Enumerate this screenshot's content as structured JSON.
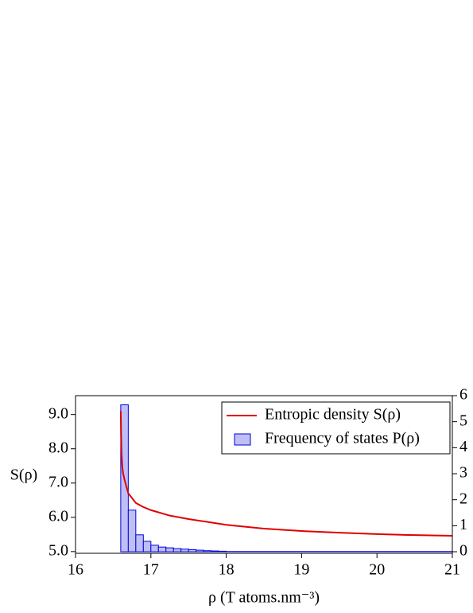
{
  "chart_data": {
    "type": "combo",
    "ylabel": "S(ρ)",
    "xlabel": "ρ  (T atoms.nm⁻³)",
    "xlim": [
      16,
      21
    ],
    "xticks": [
      16,
      17,
      18,
      19,
      20,
      21
    ],
    "ylim": [
      4.95,
      9.55
    ],
    "yticks": [
      {
        "value": 5,
        "label": "5.0"
      },
      {
        "value": 6,
        "label": "6.0"
      },
      {
        "value": 7,
        "label": "7.0"
      },
      {
        "value": 8,
        "label": "8.0"
      },
      {
        "value": 9,
        "label": "9.0"
      }
    ],
    "y2lim": [
      -0.06,
      6
    ],
    "y2ticks": [
      0,
      1,
      2,
      3,
      4,
      5,
      6
    ],
    "legend": "upper right",
    "series": [
      {
        "name": "Entropic density S(ρ)",
        "type": "line",
        "color": "#e00000",
        "x": [
          16.6,
          16.605,
          16.61,
          16.62,
          16.63,
          16.65,
          16.7,
          16.8,
          16.9,
          17,
          17.25,
          17.5,
          18,
          18.5,
          19,
          19.5,
          20,
          20.5,
          21
        ],
        "values": [
          9.1,
          8.4,
          7.9,
          7.5,
          7.3,
          7.1,
          6.7,
          6.42,
          6.3,
          6.21,
          6.05,
          5.95,
          5.78,
          5.67,
          5.6,
          5.55,
          5.51,
          5.48,
          5.46
        ]
      },
      {
        "name": "Frequency of states P(ρ)",
        "type": "histogram",
        "axis": "y2",
        "color": "#bfbff5",
        "edgecolor": "#0000e0",
        "bins": [
          16.6,
          16.7,
          16.8,
          16.9,
          17.0,
          17.1,
          17.2,
          17.3,
          17.4,
          17.5,
          17.6,
          17.7,
          17.8,
          17.9,
          18.0,
          21.0
        ],
        "values": [
          5.65,
          1.6,
          0.65,
          0.4,
          0.25,
          0.18,
          0.15,
          0.12,
          0.1,
          0.08,
          0.06,
          0.04,
          0.03,
          0.02,
          0.01
        ]
      }
    ]
  }
}
